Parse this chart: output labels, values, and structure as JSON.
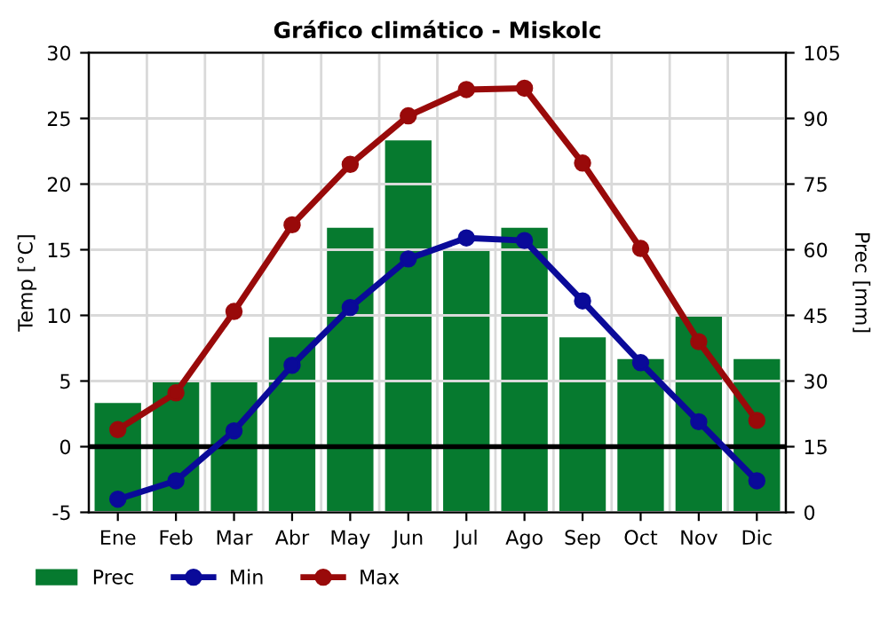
{
  "chart_data": {
    "type": "line",
    "title": "Gráfico climático - Miskolc",
    "ylabel": "Temp [°C]",
    "y2label": "Prec [mm]",
    "categories": [
      "Ene",
      "Feb",
      "Mar",
      "Abr",
      "May",
      "Jun",
      "Jul",
      "Ago",
      "Sep",
      "Oct",
      "Nov",
      "Dic"
    ],
    "series": [
      {
        "name": "Prec",
        "type": "bar",
        "axis": "y2",
        "color": "#067a2f",
        "values": [
          25,
          30,
          30,
          40,
          65,
          85,
          60,
          65,
          40,
          35,
          45,
          35
        ]
      },
      {
        "name": "Min",
        "color": "#0a0a99",
        "values": [
          -4.0,
          -2.6,
          1.2,
          6.2,
          10.6,
          14.3,
          15.9,
          15.7,
          11.1,
          6.4,
          1.9,
          -2.6
        ]
      },
      {
        "name": "Max",
        "color": "#990a0a",
        "values": [
          1.3,
          4.1,
          10.3,
          16.9,
          21.5,
          25.2,
          27.2,
          27.3,
          21.6,
          15.1,
          8.0,
          2.0
        ]
      }
    ],
    "ylim": [
      -5,
      30
    ],
    "yticks": [
      -5,
      0,
      5,
      10,
      15,
      20,
      25,
      30
    ],
    "y2lim": [
      0,
      105
    ],
    "y2ticks": [
      0,
      15,
      30,
      45,
      60,
      75,
      90,
      105
    ],
    "ref_lines": [
      {
        "axis": "y",
        "value": 0,
        "color": "#000000"
      }
    ],
    "grid": true,
    "legend": "bottom",
    "marker": "circle",
    "line_style": "solid"
  }
}
